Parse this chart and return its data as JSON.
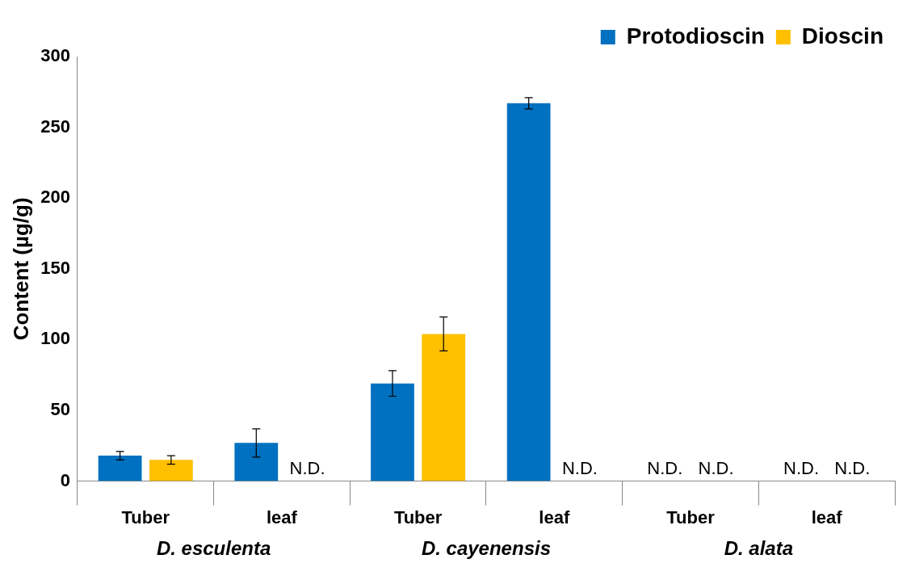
{
  "chart_data": {
    "type": "bar",
    "ylabel": "Content (µg/g)",
    "categories": [
      "Tuber",
      "leaf",
      "Tuber",
      "leaf",
      "Tuber",
      "leaf"
    ],
    "series": [
      {
        "name": "Protodioscin",
        "color": "#0070c0",
        "values": [
          18,
          27,
          69,
          267,
          null,
          null
        ],
        "errors": [
          3,
          10,
          9,
          4,
          null,
          null
        ],
        "value_labels": [
          null,
          null,
          null,
          null,
          "N.D.",
          "N.D."
        ]
      },
      {
        "name": "Dioscin",
        "color": "#ffc000",
        "values": [
          15,
          null,
          104,
          null,
          null,
          null
        ],
        "errors": [
          3,
          null,
          12,
          null,
          null,
          null
        ],
        "value_labels": [
          null,
          "N.D.",
          null,
          "N.D.",
          "N.D.",
          "N.D."
        ]
      }
    ],
    "annotations": [
      "D. esculenta",
      "D. cayenensis",
      "D. alata"
    ],
    "ylim": [
      0,
      300
    ],
    "yticks": [
      0,
      50,
      100,
      150,
      200,
      250,
      300
    ],
    "grid": false,
    "legend": "top right"
  }
}
